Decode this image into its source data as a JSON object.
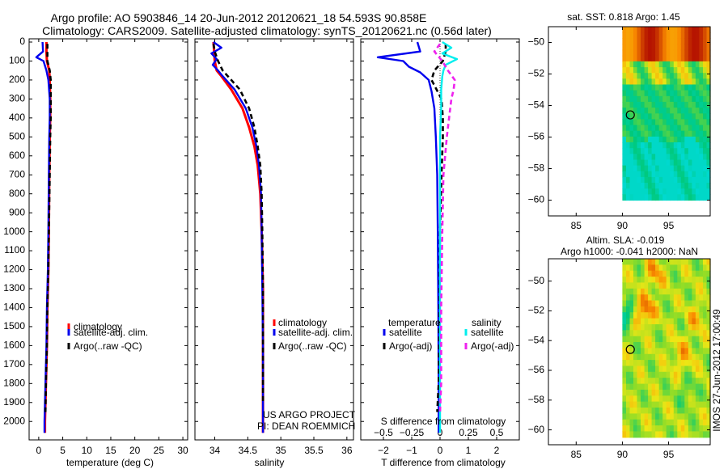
{
  "title": {
    "line1": "Argo profile: AO 5903846_14 20-Jun-2012 20120621_18 54.593S 90.858E",
    "line2": "Climatology: CARS2009. Satellite-adjusted climatology: synTS_20120621.nc (0.56d later)"
  },
  "colors": {
    "climatology": "#ff0000",
    "satellite": "#0000ee",
    "argo": "#000000",
    "sal_satellite": "#00eeee",
    "sal_argo": "#ee22ee"
  },
  "chart_data": [
    {
      "type": "line",
      "id": "temperature",
      "xlabel": "temperature (deg C)",
      "xlim": [
        -2,
        31
      ],
      "ylim": [
        0,
        2080
      ],
      "xticks": [
        "0",
        "5",
        "10",
        "15",
        "20",
        "25",
        "30"
      ],
      "xtick_values": [
        0,
        5,
        10,
        15,
        20,
        25,
        30
      ],
      "depth_ticks": [
        "0",
        "100",
        "200",
        "300",
        "400",
        "500",
        "600",
        "700",
        "800",
        "900",
        "1000",
        "1100",
        "1200",
        "1300",
        "1400",
        "1500",
        "1600",
        "1700",
        "1800",
        "1900",
        "2000"
      ],
      "legend": [
        "climatology",
        "satellite-adj. clim.",
        "Argo(..raw -QC)"
      ],
      "series": [
        {
          "name": "climatology",
          "style": "red",
          "depth": [
            0,
            50,
            100,
            150,
            200,
            300,
            400,
            500,
            700,
            1000,
            1200,
            1400,
            1600,
            1800,
            2000,
            2060
          ],
          "values": [
            1.6,
            1.6,
            1.7,
            2.2,
            2.3,
            2.4,
            2.4,
            2.3,
            2.2,
            2.1,
            2.0,
            1.8,
            1.7,
            1.5,
            1.3,
            1.3
          ]
        },
        {
          "name": "satellite-adj. clim.",
          "style": "blue",
          "depth": [
            0,
            50,
            80,
            100,
            150,
            200,
            300,
            400,
            500,
            700,
            1000,
            1200,
            1400,
            1600,
            1800,
            2000,
            2060
          ],
          "values": [
            0.8,
            0.9,
            -0.5,
            1.0,
            1.6,
            2.0,
            2.3,
            2.3,
            2.2,
            2.1,
            2.0,
            1.9,
            1.7,
            1.6,
            1.4,
            1.2,
            1.2
          ]
        },
        {
          "name": "Argo(..raw -QC)",
          "style": "black-dash",
          "depth": [
            10,
            50,
            100,
            150,
            200,
            300,
            400,
            500,
            700,
            1000,
            1200,
            1400,
            1600,
            1800,
            1950
          ],
          "values": [
            1.8,
            1.8,
            1.8,
            2.3,
            2.5,
            2.5,
            2.5,
            2.4,
            2.3,
            2.1,
            2.0,
            1.8,
            1.7,
            1.5,
            1.4
          ]
        }
      ]
    },
    {
      "type": "line",
      "id": "salinity",
      "xlabel": "salinity",
      "xlim": [
        33.7,
        36.1
      ],
      "ylim": [
        0,
        2080
      ],
      "xticks": [
        "34",
        "34.5",
        "35",
        "35.5",
        "36"
      ],
      "xtick_values": [
        34,
        34.5,
        35,
        35.5,
        36
      ],
      "legend": [
        "climatology",
        "satellite-adj. clim.",
        "Argo(..raw -QC)"
      ],
      "annotation": [
        "US ARGO PROJECT",
        "PI: DEAN ROEMMICH"
      ],
      "series": [
        {
          "name": "climatology",
          "style": "red",
          "depth": [
            0,
            50,
            100,
            150,
            180,
            250,
            350,
            450,
            550,
            650,
            800,
            1000,
            1300,
            1600,
            1900,
            2060
          ],
          "values": [
            33.98,
            33.99,
            34.0,
            34.03,
            34.1,
            34.25,
            34.42,
            34.52,
            34.6,
            34.65,
            34.69,
            34.71,
            34.73,
            34.73,
            34.73,
            34.73
          ]
        },
        {
          "name": "satellite-adj. clim.",
          "style": "blue",
          "depth": [
            0,
            30,
            60,
            90,
            120,
            150,
            180,
            250,
            350,
            450,
            550,
            650,
            800,
            1000,
            1300,
            1600,
            1900,
            2060
          ],
          "values": [
            33.98,
            34.1,
            33.95,
            34.03,
            33.97,
            34.05,
            34.12,
            34.3,
            34.47,
            34.57,
            34.63,
            34.67,
            34.7,
            34.71,
            34.72,
            34.73,
            34.73,
            34.73
          ]
        },
        {
          "name": "Argo(..raw -QC)",
          "style": "black-dash",
          "depth": [
            10,
            50,
            100,
            150,
            200,
            250,
            350,
            450,
            550,
            650,
            800,
            1000,
            1300,
            1600,
            1900
          ],
          "values": [
            33.98,
            34.0,
            34.05,
            34.12,
            34.25,
            34.38,
            34.52,
            34.6,
            34.65,
            34.69,
            34.71,
            34.72,
            34.73,
            34.73,
            34.73
          ]
        }
      ]
    },
    {
      "type": "line",
      "id": "differences",
      "xlabel": "T difference from climatology",
      "top_axis_label": "S difference from climatology",
      "xlim": [
        -2.8,
        2.8
      ],
      "ylim": [
        0,
        2080
      ],
      "xticks": [
        "−2",
        "−1",
        "0",
        "1",
        "2"
      ],
      "xtick_values": [
        -2,
        -1,
        0,
        1,
        2
      ],
      "sticks": [
        "−0.5",
        "−0.25",
        "0",
        "0.25",
        "0.5"
      ],
      "stick_values": [
        -0.5,
        -0.25,
        0,
        0.25,
        0.5
      ],
      "s_scale": 4,
      "legend_titles": [
        "temperature",
        "salinity"
      ],
      "legend": [
        "satellite",
        "Argo(-adj)",
        "satellite",
        "Argo(-adj)"
      ],
      "series": [
        {
          "name": "T satellite",
          "style": "blue",
          "depth": [
            0,
            50,
            80,
            100,
            130,
            160,
            200,
            260,
            350,
            500,
            700,
            1000,
            1400,
            1800,
            2060
          ],
          "values": [
            -0.8,
            -0.7,
            -2.2,
            -1.3,
            -1.1,
            -0.7,
            -0.4,
            -0.3,
            -0.2,
            -0.15,
            -0.1,
            -0.08,
            -0.06,
            -0.05,
            -0.05
          ]
        },
        {
          "name": "T Argo(-adj)",
          "style": "black-dash",
          "depth": [
            10,
            50,
            100,
            150,
            200,
            300,
            400,
            500,
            700,
            1000,
            1400,
            1800,
            1950
          ],
          "values": [
            0.2,
            0.2,
            0.1,
            -0.2,
            -0.3,
            0.05,
            0.1,
            0.1,
            0.05,
            0.0,
            -0.02,
            -0.05,
            -0.1
          ]
        },
        {
          "name": "S satellite",
          "style": "cyan",
          "depth": [
            0,
            30,
            60,
            90,
            120,
            150,
            180,
            250,
            350,
            500,
            700,
            1000,
            1400,
            1800,
            2060
          ],
          "values": [
            0.02,
            0.1,
            0.02,
            0.15,
            0.05,
            0.03,
            0.02,
            0.01,
            0.01,
            0.0,
            0.0,
            0.0,
            0.0,
            0.0,
            0.0
          ]
        },
        {
          "name": "S Argo(-adj)",
          "style": "magenta-dash",
          "depth": [
            10,
            50,
            100,
            150,
            200,
            250,
            300,
            400,
            500,
            700,
            1000,
            1400,
            1800,
            1950
          ],
          "values": [
            0.0,
            -0.05,
            0.02,
            0.07,
            0.13,
            0.12,
            0.1,
            0.08,
            0.06,
            0.03,
            0.02,
            0.01,
            0.01,
            0.0
          ]
        }
      ]
    },
    {
      "type": "heatmap",
      "id": "sst-map",
      "title": "sat. SST: 0.818 Argo: 1.45",
      "xticks": [
        "85",
        "90",
        "95"
      ],
      "xtick_values": [
        85,
        90,
        95
      ],
      "yticks": [
        "−50",
        "−52",
        "−54",
        "−56",
        "−58",
        "−60"
      ],
      "ytick_values": [
        -50,
        -52,
        -54,
        -56,
        -58,
        -60
      ],
      "lon_range": [
        82,
        99.5
      ],
      "lat_range": [
        -61,
        -49
      ],
      "data_lon_range": [
        90,
        99.5
      ],
      "data_lat_range": [
        -60,
        -49
      ],
      "float_position": [
        90.858,
        -54.593
      ]
    },
    {
      "type": "heatmap",
      "id": "sla-map",
      "title": "Altim. SLA: -0.019",
      "subtitle": "Argo h1000: -0.041 h2000: NaN",
      "xticks": [
        "85",
        "90",
        "95"
      ],
      "xtick_values": [
        85,
        90,
        95
      ],
      "yticks": [
        "−50",
        "−52",
        "−54",
        "−56",
        "−58",
        "−60"
      ],
      "ytick_values": [
        -50,
        -52,
        -54,
        -56,
        -58,
        -60
      ],
      "lon_range": [
        82,
        99.5
      ],
      "lat_range": [
        -61,
        -48.5
      ],
      "data_lon_range": [
        90,
        99.5
      ],
      "data_lat_range": [
        -60.5,
        -48.5
      ],
      "float_position": [
        90.858,
        -54.593
      ]
    }
  ],
  "footer": {
    "stamp": "IMOS 27-Jun-2012 17:00:49"
  }
}
